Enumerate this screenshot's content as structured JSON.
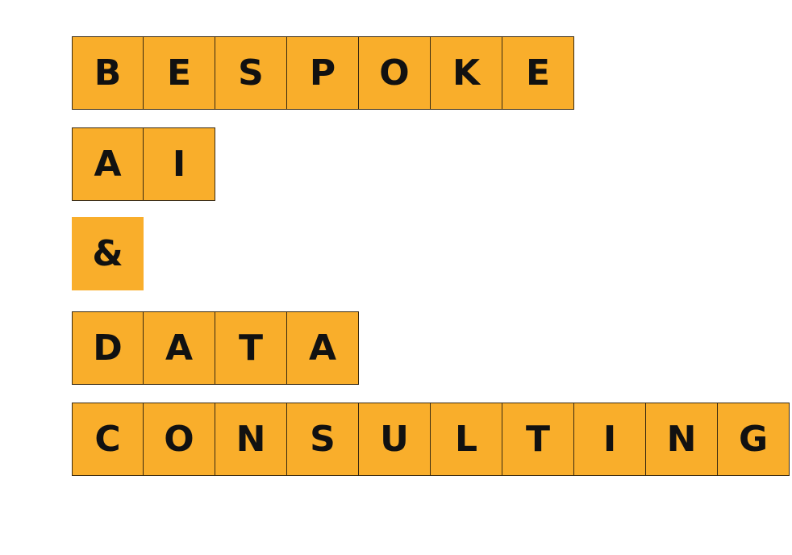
{
  "logo": {
    "tile_color": "#F9AE2B",
    "rows": [
      {
        "id": "bespoke",
        "letters": [
          "B",
          "E",
          "S",
          "P",
          "O",
          "K",
          "E"
        ],
        "bordered": true
      },
      {
        "id": "ai",
        "letters": [
          "A",
          "I"
        ],
        "bordered": true
      },
      {
        "id": "ampersand",
        "letters": [
          "&"
        ],
        "bordered": false
      },
      {
        "id": "data",
        "letters": [
          "D",
          "A",
          "T",
          "A"
        ],
        "bordered": true
      },
      {
        "id": "consulting",
        "letters": [
          "C",
          "O",
          "N",
          "S",
          "U",
          "L",
          "T",
          "I",
          "N",
          "G"
        ],
        "bordered": true
      }
    ]
  }
}
